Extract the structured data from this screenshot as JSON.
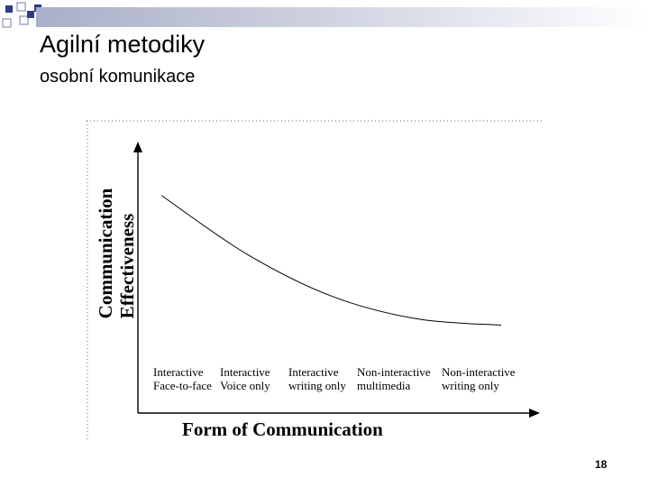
{
  "slide": {
    "title": "Agilní metodiky",
    "subtitle": "osobní komunikace",
    "page_number": "18",
    "accent_color": "#2b3b8f"
  },
  "chart_data": {
    "type": "line",
    "xlabel": "Form of Communication",
    "ylabel_line1": "Communication",
    "ylabel_line2": "Effectiveness",
    "categories": [
      {
        "line1": "Interactive",
        "line2": "Face-to-face"
      },
      {
        "line1": "Interactive",
        "line2": "Voice only"
      },
      {
        "line1": "Interactive",
        "line2": "writing only"
      },
      {
        "line1": "Non-interactive",
        "line2": "multimedia"
      },
      {
        "line1": "Non-interactive",
        "line2": "writing only"
      }
    ],
    "series": [
      {
        "values": [
          0.98,
          0.62,
          0.36,
          0.22,
          0.18
        ]
      }
    ],
    "ylim": [
      0,
      1
    ],
    "grid": false
  }
}
